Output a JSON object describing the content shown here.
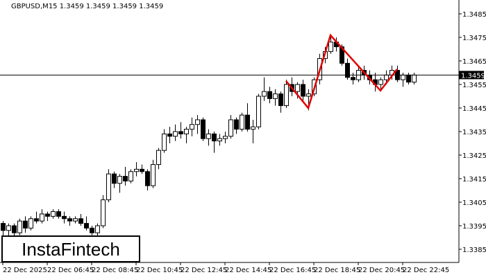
{
  "chart_data": {
    "type": "candlestick",
    "title": "GBPUSD,M15  1.3459 1.3459 1.3459 1.3459",
    "logo": "InstaFintech",
    "categories": [
      "22 Dec 2025",
      null,
      null,
      null,
      null,
      null,
      null,
      null,
      "22 Dec 06:45",
      null,
      null,
      null,
      null,
      null,
      null,
      null,
      "22 Dec 08:45",
      null,
      null,
      null,
      null,
      null,
      null,
      null,
      "22 Dec 10:45",
      null,
      null,
      null,
      null,
      null,
      null,
      null,
      "22 Dec 12:45",
      null,
      null,
      null,
      null,
      null,
      null,
      null,
      "22 Dec 14:45",
      null,
      null,
      null,
      null,
      null,
      null,
      null,
      "22 Dec 16:45",
      null,
      null,
      null,
      null,
      null,
      null,
      null,
      "22 Dec 18:45",
      null,
      null,
      null,
      null,
      null,
      null,
      null,
      "22 Dec 20:45",
      null,
      null,
      null,
      null,
      null,
      null,
      null,
      "22 Dec 22:45",
      null,
      null
    ],
    "open": [
      1.3396,
      1.3393,
      1.3395,
      1.3392,
      1.3397,
      1.3394,
      1.3398,
      1.3397,
      1.34,
      1.3399,
      1.3401,
      1.3399,
      1.3398,
      1.3397,
      1.3398,
      1.3396,
      1.3394,
      1.3392,
      1.3395,
      1.3406,
      1.3417,
      1.3413,
      1.3416,
      1.3414,
      1.3418,
      1.3419,
      1.3418,
      1.3412,
      1.3421,
      1.3427,
      1.3434,
      1.3433,
      1.3435,
      1.3434,
      1.3436,
      1.3438,
      1.344,
      1.3432,
      1.3434,
      1.3431,
      1.3432,
      1.3433,
      1.344,
      1.3436,
      1.3442,
      1.3436,
      1.3437,
      1.345,
      1.3452,
      1.3449,
      1.3451,
      1.3446,
      1.3455,
      1.3452,
      1.3455,
      1.345,
      1.3451,
      1.3457,
      1.3466,
      1.3469,
      1.3473,
      1.3471,
      1.3464,
      1.3458,
      1.3457,
      1.3461,
      1.3459,
      1.3457,
      1.3455,
      1.3457,
      1.3459,
      1.3461,
      1.3457,
      1.3459,
      1.3456
    ],
    "high": [
      1.3397,
      1.3396,
      1.3396,
      1.3398,
      1.3399,
      1.3399,
      1.3401,
      1.3402,
      1.3401,
      1.3402,
      1.3402,
      1.3401,
      1.3399,
      1.3399,
      1.34,
      1.3399,
      1.3395,
      1.3396,
      1.3408,
      1.3419,
      1.3418,
      1.3417,
      1.342,
      1.3419,
      1.3422,
      1.3421,
      1.3419,
      1.3423,
      1.3428,
      1.3436,
      1.3437,
      1.3438,
      1.3439,
      1.3437,
      1.3441,
      1.3442,
      1.3441,
      1.3436,
      1.3435,
      1.3434,
      1.3435,
      1.3442,
      1.3441,
      1.3443,
      1.3447,
      1.344,
      1.3451,
      1.3458,
      1.3454,
      1.3453,
      1.3452,
      1.3457,
      1.3458,
      1.3456,
      1.3457,
      1.3453,
      1.3458,
      1.3468,
      1.3471,
      1.3476,
      1.3475,
      1.3472,
      1.3466,
      1.346,
      1.3463,
      1.3463,
      1.3461,
      1.346,
      1.3458,
      1.3461,
      1.3463,
      1.3463,
      1.346,
      1.346,
      1.346
    ],
    "low": [
      1.3389,
      1.339,
      1.339,
      1.3391,
      1.3392,
      1.3393,
      1.3396,
      1.3396,
      1.3397,
      1.3398,
      1.3398,
      1.3396,
      1.3395,
      1.3396,
      1.3395,
      1.3393,
      1.3391,
      1.339,
      1.3394,
      1.3405,
      1.3411,
      1.3409,
      1.3412,
      1.3413,
      1.3416,
      1.3417,
      1.341,
      1.3411,
      1.3419,
      1.3426,
      1.343,
      1.3431,
      1.3432,
      1.343,
      1.3433,
      1.3434,
      1.3431,
      1.3429,
      1.3426,
      1.3429,
      1.343,
      1.3432,
      1.3434,
      1.3435,
      1.3435,
      1.343,
      1.3436,
      1.3448,
      1.3447,
      1.3446,
      1.3443,
      1.3445,
      1.345,
      1.3449,
      1.3448,
      1.3444,
      1.345,
      1.3455,
      1.3464,
      1.3468,
      1.3469,
      1.3463,
      1.3457,
      1.3455,
      1.3456,
      1.3457,
      1.3455,
      1.3452,
      1.3453,
      1.3455,
      1.3457,
      1.3456,
      1.3454,
      1.3455,
      1.3455
    ],
    "close": [
      1.3393,
      1.3395,
      1.3392,
      1.3397,
      1.3394,
      1.3398,
      1.3397,
      1.34,
      1.3399,
      1.3401,
      1.3399,
      1.3398,
      1.3397,
      1.3398,
      1.3396,
      1.3394,
      1.3392,
      1.3395,
      1.3406,
      1.3417,
      1.3413,
      1.3416,
      1.3414,
      1.3418,
      1.3419,
      1.3418,
      1.3412,
      1.3421,
      1.3427,
      1.3434,
      1.3433,
      1.3435,
      1.3434,
      1.3436,
      1.3438,
      1.344,
      1.3432,
      1.3434,
      1.3431,
      1.3432,
      1.3433,
      1.344,
      1.3436,
      1.3442,
      1.3436,
      1.3437,
      1.345,
      1.3452,
      1.3449,
      1.3451,
      1.3446,
      1.3455,
      1.3452,
      1.3455,
      1.345,
      1.3451,
      1.3457,
      1.3466,
      1.3469,
      1.3473,
      1.3471,
      1.3464,
      1.3458,
      1.3457,
      1.3461,
      1.3459,
      1.3457,
      1.3455,
      1.3457,
      1.3459,
      1.3461,
      1.3457,
      1.3459,
      1.3456,
      1.3459
    ],
    "current_price": 1.3459,
    "ylim": [
      1.33797,
      1.34894
    ],
    "yticks": [
      1.3485,
      1.3475,
      1.3465,
      1.3455,
      1.3445,
      1.3435,
      1.3425,
      1.3415,
      1.3405,
      1.3395,
      1.3385
    ],
    "pattern": {
      "color": "#e00000",
      "x": [
        51,
        55,
        59,
        68,
        71
      ],
      "y": [
        1.34565,
        1.3445,
        1.34759,
        1.34524,
        1.34615
      ]
    }
  }
}
